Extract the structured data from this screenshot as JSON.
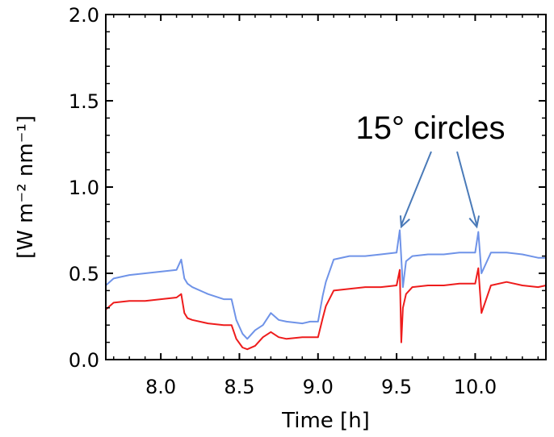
{
  "chart_data": {
    "type": "line",
    "xlabel": "Time [h]",
    "ylabel": "[W m⁻² nm⁻¹]",
    "xlim": [
      7.65,
      10.45
    ],
    "ylim": [
      0.0,
      2.0
    ],
    "xticks": [
      "8.0",
      "8.5",
      "9.0",
      "9.5",
      "10.0"
    ],
    "xtick_values": [
      8.0,
      8.5,
      9.0,
      9.5,
      10.0
    ],
    "yticks": [
      "0.0",
      "0.5",
      "1.0",
      "1.5",
      "2.0"
    ],
    "ytick_values": [
      0.0,
      0.5,
      1.0,
      1.5,
      2.0
    ],
    "grid": false,
    "colors": {
      "blue": "#6f93e8",
      "red": "#ee1c1c",
      "arrow": "#4a7ab8"
    },
    "series": [
      {
        "color": "blue",
        "x": [
          7.65,
          7.7,
          7.8,
          7.9,
          8.0,
          8.1,
          8.13,
          8.15,
          8.17,
          8.2,
          8.3,
          8.4,
          8.45,
          8.48,
          8.52,
          8.55,
          8.6,
          8.65,
          8.7,
          8.75,
          8.8,
          8.9,
          8.95,
          9.0,
          9.03,
          9.05,
          9.1,
          9.2,
          9.3,
          9.4,
          9.5,
          9.52,
          9.54,
          9.56,
          9.6,
          9.7,
          9.8,
          9.9,
          10.0,
          10.02,
          10.04,
          10.1,
          10.2,
          10.3,
          10.4,
          10.45
        ],
        "y": [
          0.43,
          0.47,
          0.49,
          0.5,
          0.51,
          0.52,
          0.58,
          0.47,
          0.44,
          0.42,
          0.38,
          0.35,
          0.35,
          0.23,
          0.15,
          0.12,
          0.17,
          0.2,
          0.27,
          0.23,
          0.22,
          0.21,
          0.22,
          0.22,
          0.37,
          0.45,
          0.58,
          0.6,
          0.6,
          0.61,
          0.62,
          0.75,
          0.42,
          0.57,
          0.6,
          0.61,
          0.61,
          0.62,
          0.62,
          0.74,
          0.5,
          0.62,
          0.62,
          0.61,
          0.59,
          0.59
        ]
      },
      {
        "color": "red",
        "x": [
          7.65,
          7.7,
          7.8,
          7.9,
          8.0,
          8.1,
          8.13,
          8.15,
          8.17,
          8.2,
          8.3,
          8.4,
          8.45,
          8.48,
          8.52,
          8.55,
          8.6,
          8.65,
          8.7,
          8.75,
          8.8,
          8.9,
          8.95,
          9.0,
          9.03,
          9.05,
          9.1,
          9.2,
          9.3,
          9.4,
          9.5,
          9.52,
          9.53,
          9.54,
          9.56,
          9.6,
          9.7,
          9.8,
          9.9,
          10.0,
          10.02,
          10.04,
          10.1,
          10.2,
          10.3,
          10.4,
          10.45
        ],
        "y": [
          0.29,
          0.33,
          0.34,
          0.34,
          0.35,
          0.36,
          0.38,
          0.27,
          0.24,
          0.23,
          0.21,
          0.2,
          0.2,
          0.12,
          0.07,
          0.06,
          0.08,
          0.13,
          0.16,
          0.13,
          0.12,
          0.13,
          0.13,
          0.13,
          0.24,
          0.31,
          0.4,
          0.41,
          0.42,
          0.42,
          0.43,
          0.52,
          0.1,
          0.3,
          0.38,
          0.42,
          0.43,
          0.43,
          0.44,
          0.44,
          0.53,
          0.27,
          0.43,
          0.45,
          0.43,
          0.42,
          0.43
        ]
      }
    ],
    "annotation": {
      "text": "15° circles",
      "targets": [
        {
          "x": 9.53,
          "y": 0.77
        },
        {
          "x": 10.01,
          "y": 0.77
        }
      ]
    }
  }
}
